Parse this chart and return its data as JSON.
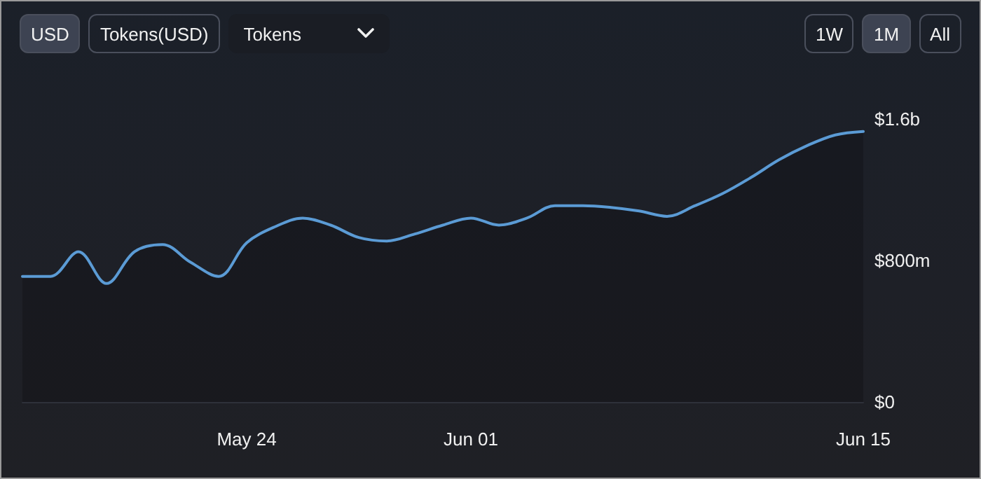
{
  "chart_data": {
    "type": "area",
    "annotations": [
      "USD",
      "Tokens(USD)",
      "Tokens",
      "1W",
      "1M",
      "All"
    ],
    "x": [
      "--05-16",
      "--05-17",
      "--05-18",
      "--05-19",
      "--05-20",
      "--05-21",
      "--05-22",
      "--05-23",
      "--05-24",
      "--05-25",
      "--05-26",
      "--05-27",
      "--05-28",
      "--05-29",
      "--05-30",
      "--05-31",
      "--06-01",
      "--06-02",
      "--06-03",
      "--06-04",
      "--06-05",
      "--06-06",
      "--06-07",
      "--06-08",
      "--06-09",
      "--06-10",
      "--06-11",
      "--06-12",
      "--06-13",
      "--06-14",
      "--06-15"
    ],
    "series": [
      {
        "color": "#5b9bd5",
        "values": [
          710000000,
          710000000,
          850000000,
          670000000,
          850000000,
          890000000,
          790000000,
          710000000,
          900000000,
          990000000,
          1040000000,
          1000000000,
          930000000,
          910000000,
          950000000,
          1000000000,
          1040000000,
          1000000000,
          1040000000,
          1110000000,
          1110000000,
          1100000000,
          1080000000,
          1050000000,
          1110000000,
          1180000000,
          1270000000,
          1370000000,
          1450000000,
          1510000000,
          1530000000
        ]
      }
    ],
    "xlim": [
      "--05-16",
      "--06-15"
    ],
    "xticks": [
      {
        "value": "--05-24",
        "label": "May 24"
      },
      {
        "value": "--06-01",
        "label": "Jun 01"
      },
      {
        "value": "--06-15",
        "label": "Jun 15"
      }
    ],
    "ylim": [
      0,
      1600000000
    ],
    "yticks": [
      {
        "value": 0,
        "label": "$0"
      },
      {
        "value": 800000000,
        "label": "$800m"
      },
      {
        "value": 1600000000,
        "label": "$1.6b"
      }
    ],
    "grid": false,
    "marker": "none",
    "line_style": "solid"
  }
}
